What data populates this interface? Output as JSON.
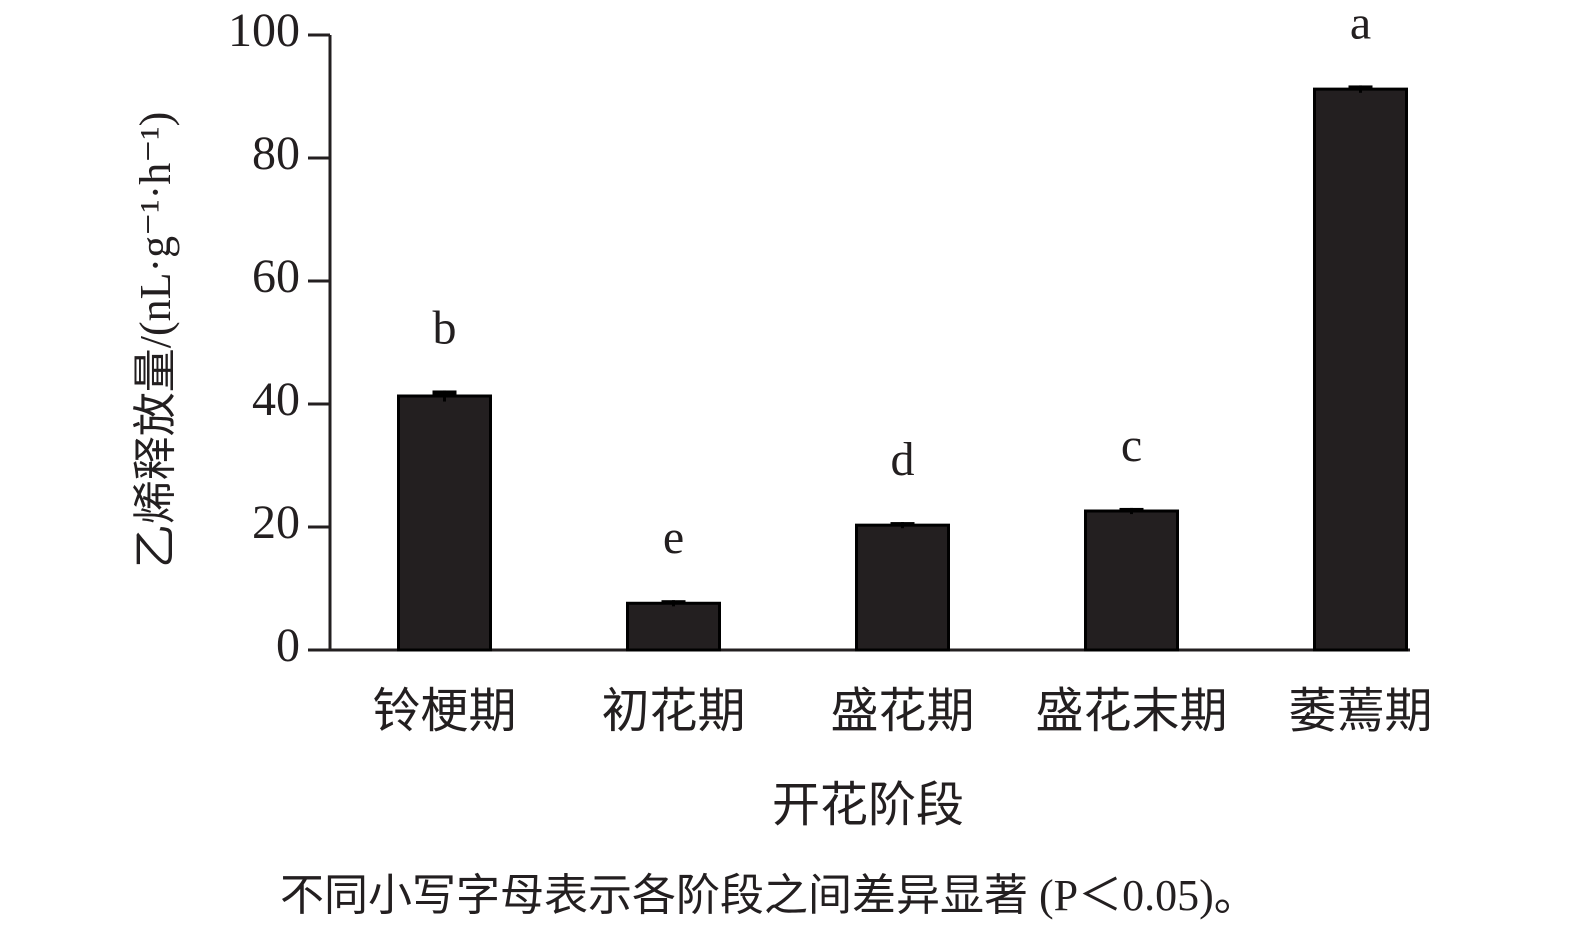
{
  "chart_data": {
    "type": "bar",
    "y_label": "乙烯释放量/(nL·g⁻¹·h⁻¹)",
    "x_label": "开花阶段",
    "note": "不同小写字母表示各阶段之间差异显著 (P＜0.05)。",
    "categories": [
      "铃梗期",
      "初花期",
      "盛花期",
      "盛花末期",
      "萎蔫期"
    ],
    "values": [
      41.3,
      7.6,
      20.3,
      22.6,
      91.2
    ],
    "errors": [
      0.9,
      0.5,
      0.5,
      0.5,
      0.6
    ],
    "significance": [
      "b",
      "e",
      "d",
      "c",
      "a"
    ],
    "color": "#231f20",
    "ylim": [
      0,
      100
    ],
    "yticks": [
      0,
      20,
      40,
      60,
      80,
      100
    ],
    "grid": false
  }
}
